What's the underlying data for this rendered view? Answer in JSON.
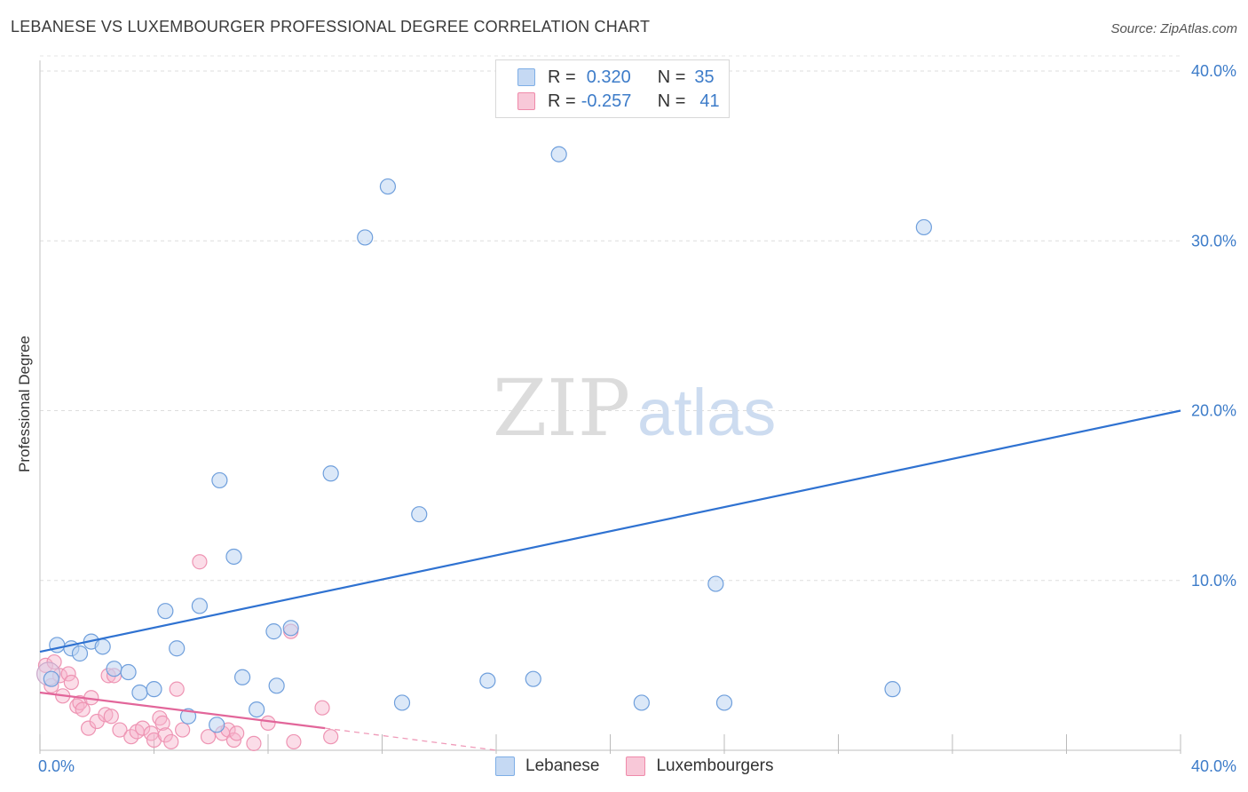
{
  "title": "LEBANESE VS LUXEMBOURGER PROFESSIONAL DEGREE CORRELATION CHART",
  "source": "Source: ZipAtlas.com",
  "watermark": {
    "zip": "ZIP",
    "atlas": "atlas"
  },
  "legend": {
    "rows": [
      {
        "r_label": "R =",
        "r_value": "0.320",
        "n_label": "N =",
        "n_value": "35",
        "color": "#7eaee6",
        "fill": "#c5d9f3"
      },
      {
        "r_label": "R =",
        "r_value": "-0.257",
        "n_label": "N =",
        "n_value": "41",
        "color": "#ef8aaa",
        "fill": "#f8c8d8"
      }
    ]
  },
  "bottom_legend": [
    "Lebanese",
    "Luxembourgers"
  ],
  "chart_data": {
    "type": "scatter",
    "title": "LEBANESE VS LUXEMBOURGER PROFESSIONAL DEGREE CORRELATION CHART",
    "xlabel": "",
    "ylabel": "Professional Degree",
    "xlim": [
      0,
      40
    ],
    "ylim": [
      0,
      40
    ],
    "x_tick_labels": [
      "0.0%",
      "40.0%"
    ],
    "y_ticks": [
      10,
      20,
      30,
      40
    ],
    "y_tick_labels": [
      "10.0%",
      "20.0%",
      "30.0%",
      "40.0%"
    ],
    "grid": true,
    "series": [
      {
        "name": "Lebanese",
        "color": "#3b78cf",
        "points": [
          [
            0.4,
            4.2
          ],
          [
            0.6,
            6.2
          ],
          [
            1.1,
            6.0
          ],
          [
            1.4,
            5.7
          ],
          [
            1.8,
            6.4
          ],
          [
            2.2,
            6.1
          ],
          [
            2.6,
            4.8
          ],
          [
            3.1,
            4.6
          ],
          [
            3.5,
            3.4
          ],
          [
            4.0,
            3.6
          ],
          [
            4.4,
            8.2
          ],
          [
            4.8,
            6.0
          ],
          [
            5.2,
            2.0
          ],
          [
            5.6,
            8.5
          ],
          [
            6.2,
            1.5
          ],
          [
            6.3,
            15.9
          ],
          [
            6.8,
            11.4
          ],
          [
            7.1,
            4.3
          ],
          [
            7.6,
            2.4
          ],
          [
            8.2,
            7.0
          ],
          [
            8.3,
            3.8
          ],
          [
            8.8,
            7.2
          ],
          [
            10.2,
            16.3
          ],
          [
            11.4,
            30.2
          ],
          [
            12.2,
            33.2
          ],
          [
            12.7,
            2.8
          ],
          [
            13.3,
            13.9
          ],
          [
            15.7,
            4.1
          ],
          [
            17.3,
            4.2
          ],
          [
            18.2,
            35.1
          ],
          [
            21.1,
            2.8
          ],
          [
            23.7,
            9.8
          ],
          [
            24.0,
            2.8
          ],
          [
            29.9,
            3.6
          ],
          [
            31.0,
            30.8
          ]
        ],
        "trend": {
          "x": [
            0,
            40
          ],
          "y": [
            5.8,
            20.0
          ]
        }
      },
      {
        "name": "Luxembourgers",
        "color": "#e46b95",
        "points": [
          [
            0.2,
            5.0
          ],
          [
            0.4,
            3.8
          ],
          [
            0.5,
            5.2
          ],
          [
            0.7,
            4.4
          ],
          [
            0.8,
            3.2
          ],
          [
            1.0,
            4.5
          ],
          [
            1.1,
            4.0
          ],
          [
            1.3,
            2.6
          ],
          [
            1.4,
            2.8
          ],
          [
            1.5,
            2.4
          ],
          [
            1.7,
            1.3
          ],
          [
            1.8,
            3.1
          ],
          [
            2.0,
            1.7
          ],
          [
            2.3,
            2.1
          ],
          [
            2.4,
            4.4
          ],
          [
            2.5,
            2.0
          ],
          [
            2.6,
            4.4
          ],
          [
            2.8,
            1.2
          ],
          [
            3.2,
            0.8
          ],
          [
            3.4,
            1.1
          ],
          [
            3.6,
            1.3
          ],
          [
            3.9,
            1.0
          ],
          [
            4.0,
            0.6
          ],
          [
            4.2,
            1.9
          ],
          [
            4.3,
            1.6
          ],
          [
            4.4,
            0.9
          ],
          [
            4.6,
            0.5
          ],
          [
            4.8,
            3.6
          ],
          [
            5.0,
            1.2
          ],
          [
            5.6,
            11.1
          ],
          [
            5.9,
            0.8
          ],
          [
            6.4,
            1.0
          ],
          [
            6.6,
            1.2
          ],
          [
            6.8,
            0.6
          ],
          [
            6.9,
            1.0
          ],
          [
            7.5,
            0.4
          ],
          [
            8.0,
            1.6
          ],
          [
            8.8,
            7.0
          ],
          [
            8.9,
            0.5
          ],
          [
            9.9,
            2.5
          ],
          [
            10.2,
            0.8
          ]
        ],
        "trend": {
          "x": [
            0,
            10
          ],
          "y": [
            3.4,
            1.3
          ]
        },
        "trend_dashed": {
          "x": [
            10,
            16
          ],
          "y": [
            1.3,
            0.0
          ]
        }
      }
    ]
  }
}
